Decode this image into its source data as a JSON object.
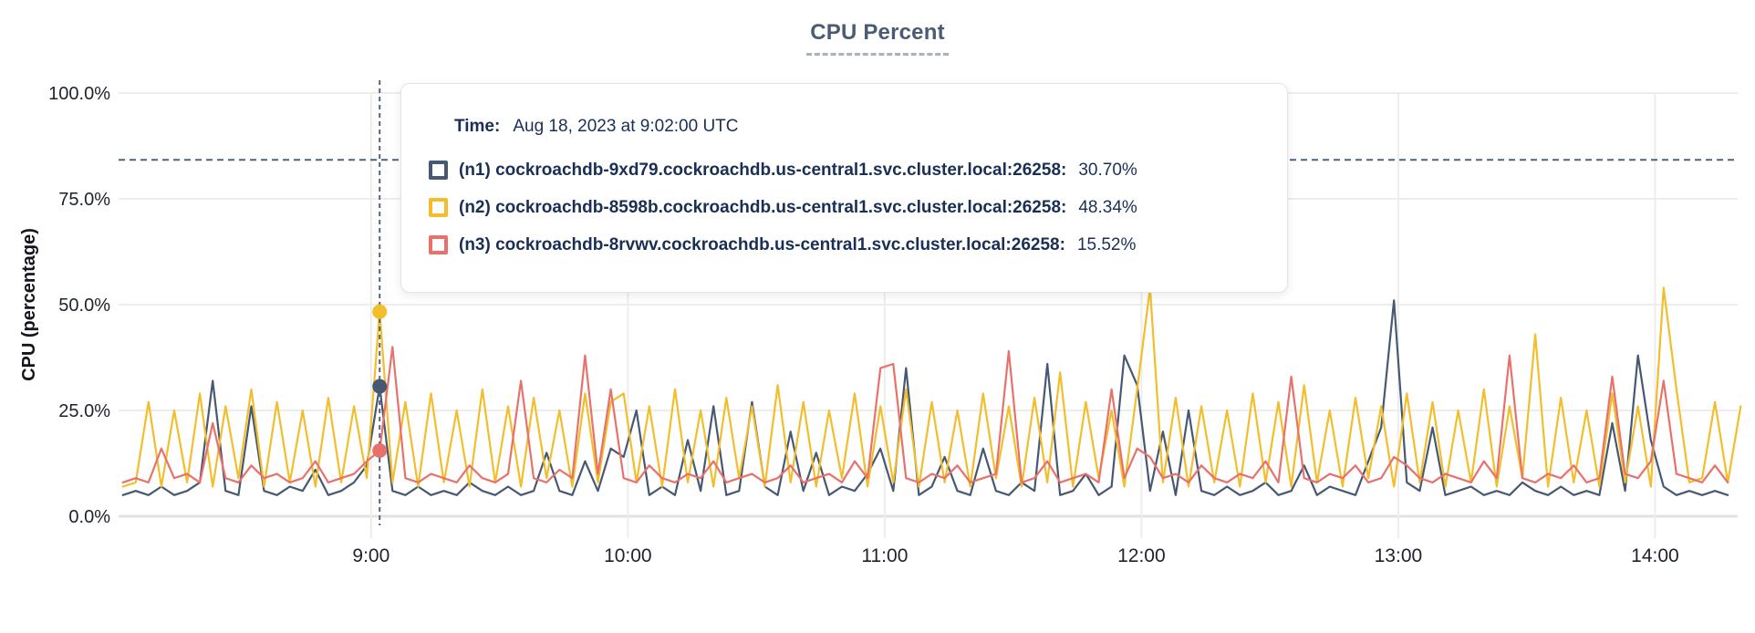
{
  "title": "CPU Percent",
  "tooltip": {
    "time_label": "Time:",
    "time_value": "Aug 18, 2023 at 9:02:00 UTC",
    "rows": [
      {
        "name": "(n1) cockroachdb-9xd79.cockroachdb.us-central1.svc.cluster.local:26258:",
        "value": "30.70%",
        "color": "#475872"
      },
      {
        "name": "(n2) cockroachdb-8598b.cockroachdb.us-central1.svc.cluster.local:26258:",
        "value": "48.34%",
        "color": "#F2BE2B"
      },
      {
        "name": "(n3) cockroachdb-8rvwv.cockroachdb.us-central1.svc.cluster.local:26258:",
        "value": "15.52%",
        "color": "#E8726B"
      }
    ]
  },
  "chart_data": {
    "type": "line",
    "title": "CPU Percent",
    "xlabel": "",
    "ylabel": "CPU (percentage)",
    "ylim": [
      0,
      100
    ],
    "grid": true,
    "x_start_minutes": 482,
    "x_step_minutes": 3,
    "x_axis": {
      "ticks": [
        {
          "minutes": 540,
          "label": "9:00"
        },
        {
          "minutes": 600,
          "label": "10:00"
        },
        {
          "minutes": 660,
          "label": "11:00"
        },
        {
          "minutes": 720,
          "label": "12:00"
        },
        {
          "minutes": 780,
          "label": "13:00"
        },
        {
          "minutes": 840,
          "label": "14:00"
        }
      ]
    },
    "y_axis": {
      "label": "CPU (percentage)",
      "ticks": [
        {
          "value": 0,
          "label": "0.0%"
        },
        {
          "value": 25,
          "label": "25.0%"
        },
        {
          "value": 50,
          "label": "50.0%"
        },
        {
          "value": 75,
          "label": "75.0%"
        },
        {
          "value": 100,
          "label": "100.0%"
        }
      ]
    },
    "threshold_percent": 84.2,
    "hover": {
      "time_label": "9:02",
      "time_minutes": 542,
      "index": 20,
      "values": {
        "n1": 30.7,
        "n2": 48.34,
        "n3": 15.52
      }
    },
    "series": [
      {
        "name": "n1",
        "label": "(n1) cockroachdb-9xd79.cockroachdb.us-central1.svc.cluster.local:26258",
        "color": "#475872",
        "values": [
          5,
          6,
          5,
          7,
          5,
          6,
          8,
          32,
          6,
          5,
          26,
          6,
          5,
          7,
          6,
          11,
          5,
          6,
          8,
          12,
          30.7,
          6,
          5,
          7,
          5,
          6,
          5,
          8,
          6,
          5,
          7,
          5,
          6,
          15,
          6,
          5,
          13,
          6,
          16,
          14,
          25,
          5,
          7,
          5,
          18,
          6,
          26,
          5,
          6,
          27,
          7,
          5,
          20,
          6,
          15,
          5,
          7,
          6,
          10,
          16,
          6,
          35,
          5,
          7,
          14,
          6,
          5,
          16,
          6,
          5,
          8,
          6,
          36,
          5,
          6,
          10,
          5,
          7,
          38,
          31,
          6,
          20,
          5,
          25,
          6,
          5,
          7,
          5,
          6,
          8,
          5,
          6,
          12,
          5,
          7,
          6,
          5,
          13,
          21,
          51,
          8,
          6,
          21,
          5,
          6,
          7,
          5,
          6,
          5,
          8,
          6,
          5,
          7,
          5,
          6,
          5,
          22,
          6,
          38,
          18,
          7,
          5,
          6,
          5,
          6,
          5
        ]
      },
      {
        "name": "n2",
        "label": "(n2) cockroachdb-8598b.cockroachdb.us-central1.svc.cluster.local:26258",
        "color": "#F2BE2B",
        "values": [
          7,
          8,
          27,
          7,
          25,
          8,
          29,
          7,
          26,
          9,
          30,
          7,
          27,
          8,
          25,
          7,
          28,
          8,
          26,
          9,
          48.3,
          8,
          27,
          7,
          29,
          8,
          25,
          7,
          30,
          8,
          26,
          7,
          28,
          9,
          25,
          7,
          29,
          8,
          27,
          29,
          8,
          26,
          7,
          30,
          8,
          25,
          7,
          28,
          9,
          26,
          7,
          31,
          8,
          27,
          7,
          25,
          9,
          29,
          7,
          26,
          8,
          30,
          7,
          27,
          8,
          25,
          7,
          29,
          9,
          26,
          7,
          28,
          8,
          34,
          7,
          27,
          9,
          25,
          7,
          30,
          54,
          8,
          28,
          7,
          26,
          8,
          25,
          7,
          29,
          8,
          27,
          7,
          31,
          8,
          25,
          7,
          28,
          9,
          26,
          7,
          29,
          8,
          27,
          7,
          25,
          8,
          30,
          7,
          26,
          9,
          43,
          7,
          28,
          8,
          25,
          7,
          29,
          8,
          26,
          7,
          54,
          30,
          8,
          9,
          27,
          8,
          26
        ]
      },
      {
        "name": "n3",
        "label": "(n3) cockroachdb-8rvwv.cockroachdb.us-central1.svc.cluster.local:26258",
        "color": "#E8726B",
        "values": [
          8,
          9,
          8,
          16,
          9,
          10,
          8,
          22,
          9,
          8,
          12,
          9,
          10,
          8,
          9,
          13,
          8,
          9,
          10,
          13,
          15.5,
          40,
          9,
          8,
          10,
          9,
          8,
          12,
          9,
          8,
          10,
          32,
          9,
          8,
          11,
          9,
          38,
          10,
          30,
          9,
          8,
          12,
          9,
          8,
          10,
          9,
          13,
          8,
          9,
          10,
          8,
          9,
          12,
          8,
          9,
          10,
          8,
          13,
          9,
          35,
          36,
          9,
          8,
          10,
          9,
          12,
          8,
          9,
          10,
          39,
          8,
          9,
          13,
          8,
          9,
          10,
          8,
          30,
          9,
          16,
          14,
          9,
          10,
          8,
          12,
          9,
          8,
          10,
          9,
          13,
          8,
          33,
          9,
          8,
          10,
          9,
          12,
          8,
          9,
          14,
          12,
          9,
          8,
          10,
          9,
          8,
          13,
          9,
          38,
          9,
          8,
          10,
          9,
          12,
          8,
          9,
          33,
          10,
          9,
          13,
          32,
          10,
          9,
          8,
          12,
          8
        ]
      }
    ]
  }
}
